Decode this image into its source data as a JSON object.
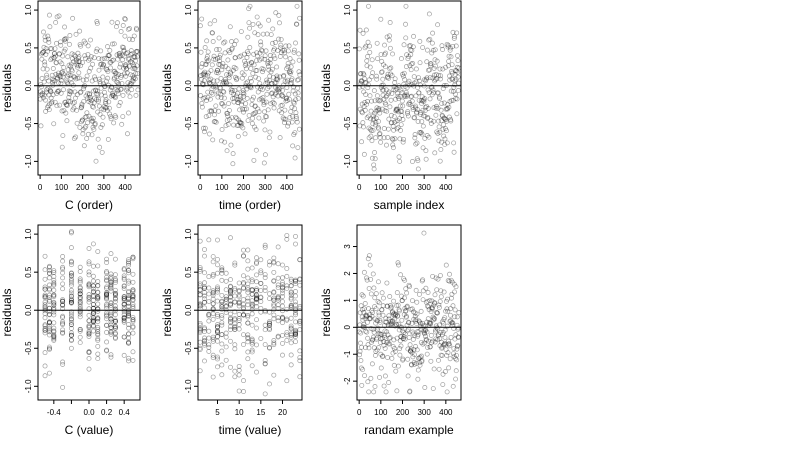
{
  "chart_data": [
    {
      "type": "scatter",
      "xlabel": "C (order)",
      "ylabel": "residuals",
      "xlim": [
        -10,
        470
      ],
      "ylim": [
        -1.18,
        1.12
      ],
      "xticks": [
        0,
        100,
        200,
        300,
        400
      ],
      "yticks": [
        -1.0,
        -0.5,
        0.0,
        0.5,
        1.0
      ],
      "ytick_labels": [
        "-1.0",
        "-0.5",
        "0.0",
        "0.5",
        "1.0"
      ],
      "reference_line_y": 0,
      "points": {
        "n": 460,
        "x_range": [
          1,
          460
        ],
        "x_pattern": "index",
        "mean_start": 0.2,
        "mean_end": 0.2,
        "mid_dip": -0.35,
        "spread": 0.33,
        "y_min_observed": -1.12,
        "y_max_observed": 1.07
      }
    },
    {
      "type": "scatter",
      "xlabel": "time (order)",
      "ylabel": "residuals",
      "xlim": [
        -10,
        470
      ],
      "ylim": [
        -1.18,
        1.12
      ],
      "xticks": [
        0,
        100,
        200,
        300,
        400
      ],
      "yticks": [
        -1.0,
        -0.5,
        0.0,
        0.5,
        1.0
      ],
      "ytick_labels": [
        "-1.0",
        "-0.5",
        "0.0",
        "0.5",
        "1.0"
      ],
      "reference_line_y": 0,
      "points": {
        "n": 460,
        "x_range": [
          1,
          460
        ],
        "x_pattern": "index",
        "mean_start": 0.0,
        "mean_end": 0.0,
        "mid_dip": 0.0,
        "spread": 0.4,
        "y_min_observed": -1.1,
        "y_max_observed": 1.05
      }
    },
    {
      "type": "scatter",
      "xlabel": "sample index",
      "ylabel": "residuals",
      "xlim": [
        -10,
        470
      ],
      "ylim": [
        -1.18,
        1.12
      ],
      "xticks": [
        0,
        100,
        200,
        300,
        400
      ],
      "yticks": [
        -1.0,
        -0.5,
        0.0,
        0.5,
        1.0
      ],
      "ytick_labels": [
        "-1.0",
        "-0.5",
        "0.0",
        "0.5",
        "1.0"
      ],
      "reference_line_y": 0,
      "points": {
        "n": 460,
        "x_range": [
          1,
          460
        ],
        "x_pattern": "blocks",
        "mean_start": 0.05,
        "mean_end": 0.05,
        "mid_dip": 0.0,
        "spread": 0.38,
        "y_min_observed": -1.1,
        "y_max_observed": 1.05
      }
    },
    {
      "type": "scatter",
      "xlabel": "C (value)",
      "ylabel": "residuals",
      "xlim": [
        -0.58,
        0.58
      ],
      "ylim": [
        -1.18,
        1.12
      ],
      "xticks": [
        -0.4,
        -0.2,
        0.0,
        0.2,
        0.4
      ],
      "xtick_labels": [
        "-0.4",
        "",
        "0.0",
        "0.2",
        "0.4"
      ],
      "yticks": [
        -1.0,
        -0.5,
        0.0,
        0.5,
        1.0
      ],
      "ytick_labels": [
        "-1.0",
        "-0.5",
        "0.0",
        "0.5",
        "1.0"
      ],
      "reference_line_y": 0,
      "points": {
        "n": 460,
        "x_range": [
          -0.5,
          0.5
        ],
        "x_pattern": "discrete",
        "x_levels": [
          -0.5,
          -0.45,
          -0.4,
          -0.3,
          -0.2,
          -0.1,
          0.0,
          0.05,
          0.1,
          0.2,
          0.25,
          0.3,
          0.4,
          0.45,
          0.5
        ],
        "mean_start": 0.2,
        "mean_end": 0.2,
        "mid_dip": -0.35,
        "spread": 0.33,
        "y_min_observed": -1.12,
        "y_max_observed": 1.07
      }
    },
    {
      "type": "scatter",
      "xlabel": "time (value)",
      "ylabel": "residuals",
      "xlim": [
        0.5,
        24.5
      ],
      "ylim": [
        -1.18,
        1.12
      ],
      "xticks": [
        5,
        10,
        15,
        20
      ],
      "yticks": [
        -1.0,
        -0.5,
        0.0,
        0.5,
        1.0
      ],
      "ytick_labels": [
        "-1.0",
        "-0.5",
        "0.0",
        "0.5",
        "1.0"
      ],
      "reference_line_y": 0,
      "points": {
        "n": 460,
        "x_range": [
          1,
          24
        ],
        "x_pattern": "discrete",
        "x_levels": [
          1,
          2,
          3,
          4,
          5,
          6,
          7,
          8,
          9,
          10,
          11,
          12,
          13,
          14,
          15,
          16,
          17,
          18,
          19,
          20,
          21,
          22,
          23,
          24
        ],
        "mean_start": 0.0,
        "mean_end": 0.0,
        "mid_dip": 0.0,
        "spread": 0.4,
        "y_min_observed": -1.1,
        "y_max_observed": 1.05
      }
    },
    {
      "type": "scatter",
      "xlabel": "randam example",
      "ylabel": "residuals",
      "xlim": [
        -10,
        470
      ],
      "ylim": [
        -2.7,
        3.8
      ],
      "xticks": [
        0,
        100,
        200,
        300,
        400
      ],
      "yticks": [
        -2,
        -1,
        0,
        1,
        2,
        3
      ],
      "ytick_labels": [
        "-2",
        "-1",
        "0",
        "1",
        "2",
        "3"
      ],
      "reference_line_y": 0,
      "points": {
        "n": 460,
        "x_range": [
          1,
          460
        ],
        "x_pattern": "index",
        "mean_start": 0.0,
        "mean_end": 0.0,
        "mid_dip": 0.0,
        "spread": 1.0,
        "y_min_observed": -2.4,
        "y_max_observed": 3.5
      }
    }
  ]
}
